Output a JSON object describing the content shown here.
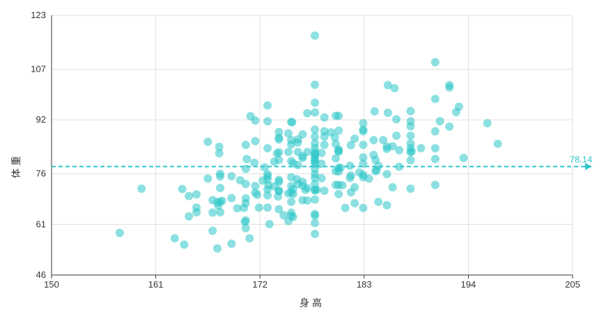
{
  "chart_data": {
    "type": "scatter",
    "title": "",
    "xlabel": "身高",
    "ylabel": "体重",
    "xlim": [
      150,
      205
    ],
    "ylim": [
      46,
      123
    ],
    "x_ticks": [
      "150",
      "161",
      "172",
      "183",
      "194",
      "205"
    ],
    "y_ticks": [
      "46",
      "61",
      "76",
      "92",
      "107",
      "123"
    ],
    "grid": true,
    "point_color": "#2ec7c9",
    "average_line": {
      "value": 78.14,
      "label": "78.14",
      "color": "#2ec7c9"
    },
    "series": [
      {
        "points": [
          [
            157.2,
            58.5
          ],
          [
            159.5,
            71.6
          ],
          [
            163.0,
            56.9
          ],
          [
            163.8,
            71.5
          ],
          [
            164.0,
            55.0
          ],
          [
            164.5,
            63.4
          ],
          [
            164.5,
            69.4
          ],
          [
            165.3,
            66.0
          ],
          [
            165.3,
            64.6
          ],
          [
            165.3,
            69.9
          ],
          [
            166.5,
            85.5
          ],
          [
            166.5,
            74.6
          ],
          [
            167.0,
            68.2
          ],
          [
            167.0,
            64.5
          ],
          [
            167.0,
            59.1
          ],
          [
            167.5,
            53.9
          ],
          [
            167.5,
            67.6
          ],
          [
            167.6,
            66.6
          ],
          [
            167.7,
            84.0
          ],
          [
            167.7,
            82.1
          ],
          [
            167.8,
            76.0
          ],
          [
            167.8,
            75.2
          ],
          [
            167.8,
            71.8
          ],
          [
            167.8,
            67.7
          ],
          [
            167.8,
            64.6
          ],
          [
            168.0,
            68.0
          ],
          [
            169.0,
            75.3
          ],
          [
            169.0,
            68.8
          ],
          [
            169.0,
            55.3
          ],
          [
            169.6,
            65.8
          ],
          [
            169.9,
            74.1
          ],
          [
            170.3,
            65.9
          ],
          [
            170.4,
            61.8
          ],
          [
            170.5,
            84.6
          ],
          [
            170.5,
            77.5
          ],
          [
            170.5,
            73.0
          ],
          [
            170.5,
            68.7
          ],
          [
            170.5,
            67.3
          ],
          [
            170.5,
            62.2
          ],
          [
            170.5,
            59.9
          ],
          [
            170.6,
            80.4
          ],
          [
            170.9,
            56.9
          ],
          [
            171.0,
            93.1
          ],
          [
            171.4,
            79.3
          ],
          [
            171.5,
            91.8
          ],
          [
            171.5,
            85.7
          ],
          [
            171.5,
            72.4
          ],
          [
            171.5,
            70.4
          ],
          [
            171.7,
            69.8
          ],
          [
            171.9,
            66.0
          ],
          [
            172.3,
            74.0
          ],
          [
            172.5,
            77.9
          ],
          [
            172.8,
            96.3
          ],
          [
            172.8,
            91.6
          ],
          [
            172.8,
            83.6
          ],
          [
            172.8,
            75.9
          ],
          [
            172.8,
            75.3
          ],
          [
            172.8,
            74.3
          ],
          [
            172.8,
            71.4
          ],
          [
            172.8,
            69.6
          ],
          [
            172.8,
            66.0
          ],
          [
            172.9,
            72.6
          ],
          [
            173.0,
            61.1
          ],
          [
            173.5,
            72.3
          ],
          [
            173.5,
            79.6
          ],
          [
            173.8,
            82.0
          ],
          [
            173.9,
            69.3
          ],
          [
            174.0,
            88.4
          ],
          [
            174.0,
            86.7
          ],
          [
            174.0,
            86.2
          ],
          [
            174.0,
            82.4
          ],
          [
            174.0,
            80.1
          ],
          [
            174.0,
            74.2
          ],
          [
            174.0,
            73.6
          ],
          [
            174.0,
            71.0
          ],
          [
            174.0,
            70.9
          ],
          [
            174.0,
            65.5
          ],
          [
            174.5,
            63.7
          ],
          [
            175.0,
            88.0
          ],
          [
            175.0,
            82.5
          ],
          [
            175.0,
            70.2
          ],
          [
            175.0,
            62.0
          ],
          [
            175.3,
            91.4
          ],
          [
            175.3,
            86.0
          ],
          [
            175.3,
            84.7
          ],
          [
            175.3,
            79.8
          ],
          [
            175.3,
            75.0
          ],
          [
            175.3,
            72.4
          ],
          [
            175.3,
            70.5
          ],
          [
            175.3,
            67.7
          ],
          [
            175.3,
            64.5
          ],
          [
            175.3,
            63.6
          ],
          [
            175.4,
            91.3
          ],
          [
            175.5,
            79.1
          ],
          [
            175.5,
            71.5
          ],
          [
            175.5,
            70.0
          ],
          [
            175.5,
            63.2
          ],
          [
            175.9,
            74.4
          ],
          [
            176.0,
            86.2
          ],
          [
            176.0,
            85.3
          ],
          [
            176.0,
            82.5
          ],
          [
            176.0,
            78.6
          ],
          [
            176.0,
            73.0
          ],
          [
            176.5,
            87.7
          ],
          [
            176.5,
            81.2
          ],
          [
            176.5,
            80.7
          ],
          [
            176.5,
            72.5
          ],
          [
            176.5,
            68.2
          ],
          [
            176.5,
            73.6
          ],
          [
            176.8,
            71.2
          ],
          [
            177.0,
            94.0
          ],
          [
            177.0,
            82.5
          ],
          [
            177.0,
            71.8
          ],
          [
            177.0,
            68.1
          ],
          [
            177.8,
            97.1
          ],
          [
            177.8,
            102.4
          ],
          [
            177.8,
            94.2
          ],
          [
            177.8,
            89.1
          ],
          [
            177.8,
            87.0
          ],
          [
            177.8,
            85.0
          ],
          [
            177.8,
            83.6
          ],
          [
            177.8,
            82.4
          ],
          [
            177.8,
            81.9
          ],
          [
            177.8,
            81.6
          ],
          [
            177.8,
            80.7
          ],
          [
            177.8,
            80.0
          ],
          [
            177.8,
            79.6
          ],
          [
            177.8,
            78.9
          ],
          [
            177.8,
            77.5
          ],
          [
            177.8,
            75.9
          ],
          [
            177.8,
            74.8
          ],
          [
            177.8,
            73.0
          ],
          [
            177.8,
            71.2
          ],
          [
            177.8,
            71.1
          ],
          [
            177.8,
            68.4
          ],
          [
            177.8,
            64.1
          ],
          [
            177.8,
            63.6
          ],
          [
            177.8,
            61.4
          ],
          [
            177.8,
            58.2
          ],
          [
            177.8,
            117.0
          ],
          [
            178.0,
            71.3
          ],
          [
            178.5,
            82.2
          ],
          [
            178.5,
            79.0
          ],
          [
            178.5,
            74.7
          ],
          [
            178.8,
            92.7
          ],
          [
            178.8,
            88.6
          ],
          [
            178.8,
            84.6
          ],
          [
            178.8,
            87.0
          ],
          [
            178.8,
            71.0
          ],
          [
            179.5,
            88.3
          ],
          [
            179.9,
            86.8
          ],
          [
            180.0,
            93.2
          ],
          [
            180.0,
            84.8
          ],
          [
            180.0,
            80.6
          ],
          [
            180.0,
            76.8
          ],
          [
            180.0,
            72.7
          ],
          [
            180.3,
            83.2
          ],
          [
            180.3,
            82.8
          ],
          [
            180.3,
            82.6
          ],
          [
            180.3,
            93.2
          ],
          [
            180.3,
            88.8
          ],
          [
            180.3,
            77.8
          ],
          [
            180.3,
            76.7
          ],
          [
            180.3,
            72.7
          ],
          [
            180.3,
            70.0
          ],
          [
            180.5,
            77.8
          ],
          [
            180.7,
            72.6
          ],
          [
            181.0,
            65.9
          ],
          [
            181.5,
            78.4
          ],
          [
            181.5,
            74.8
          ],
          [
            181.6,
            84.5
          ],
          [
            181.6,
            75.5
          ],
          [
            181.6,
            70.5
          ],
          [
            182.0,
            86.4
          ],
          [
            182.0,
            72.0
          ],
          [
            182.0,
            67.3
          ],
          [
            182.5,
            76.4
          ],
          [
            182.9,
            91.0
          ],
          [
            182.9,
            89.1
          ],
          [
            182.9,
            88.6
          ],
          [
            182.9,
            84.6
          ],
          [
            182.9,
            80.9
          ],
          [
            182.9,
            79.0
          ],
          [
            182.9,
            75.7
          ],
          [
            182.9,
            75.0
          ],
          [
            182.9,
            65.9
          ],
          [
            183.5,
            74.6
          ],
          [
            184.0,
            86.0
          ],
          [
            184.0,
            81.6
          ],
          [
            184.1,
            94.5
          ],
          [
            184.2,
            80.1
          ],
          [
            184.2,
            76.8
          ],
          [
            184.3,
            77.1
          ],
          [
            184.5,
            78.4
          ],
          [
            184.5,
            67.7
          ],
          [
            185.0,
            86.0
          ],
          [
            185.4,
            84.1
          ],
          [
            185.4,
            83.4
          ],
          [
            185.4,
            75.9
          ],
          [
            185.4,
            66.7
          ],
          [
            185.5,
            102.3
          ],
          [
            185.5,
            94.1
          ],
          [
            186.0,
            84.2
          ],
          [
            186.0,
            72.0
          ],
          [
            186.2,
            101.4
          ],
          [
            186.4,
            92.2
          ],
          [
            186.4,
            87.3
          ],
          [
            186.7,
            83.0
          ],
          [
            186.7,
            78.1
          ],
          [
            187.9,
            94.6
          ],
          [
            187.9,
            91.6
          ],
          [
            187.9,
            90.1
          ],
          [
            187.9,
            87.3
          ],
          [
            187.9,
            85.0
          ],
          [
            187.9,
            83.6
          ],
          [
            187.9,
            82.4
          ],
          [
            187.9,
            80.0
          ],
          [
            187.9,
            71.6
          ],
          [
            188.0,
            82.7
          ],
          [
            189.0,
            83.6
          ],
          [
            190.5,
            109.1
          ],
          [
            190.5,
            98.2
          ],
          [
            190.5,
            88.6
          ],
          [
            190.5,
            83.6
          ],
          [
            190.5,
            80.4
          ],
          [
            190.5,
            72.7
          ],
          [
            191.0,
            91.6
          ],
          [
            192.0,
            102.3
          ],
          [
            192.0,
            101.6
          ],
          [
            192.0,
            90.0
          ],
          [
            192.7,
            94.3
          ],
          [
            193.0,
            95.9
          ],
          [
            193.5,
            80.7
          ],
          [
            196.0,
            91.0
          ],
          [
            197.1,
            84.9
          ]
        ]
      }
    ]
  }
}
